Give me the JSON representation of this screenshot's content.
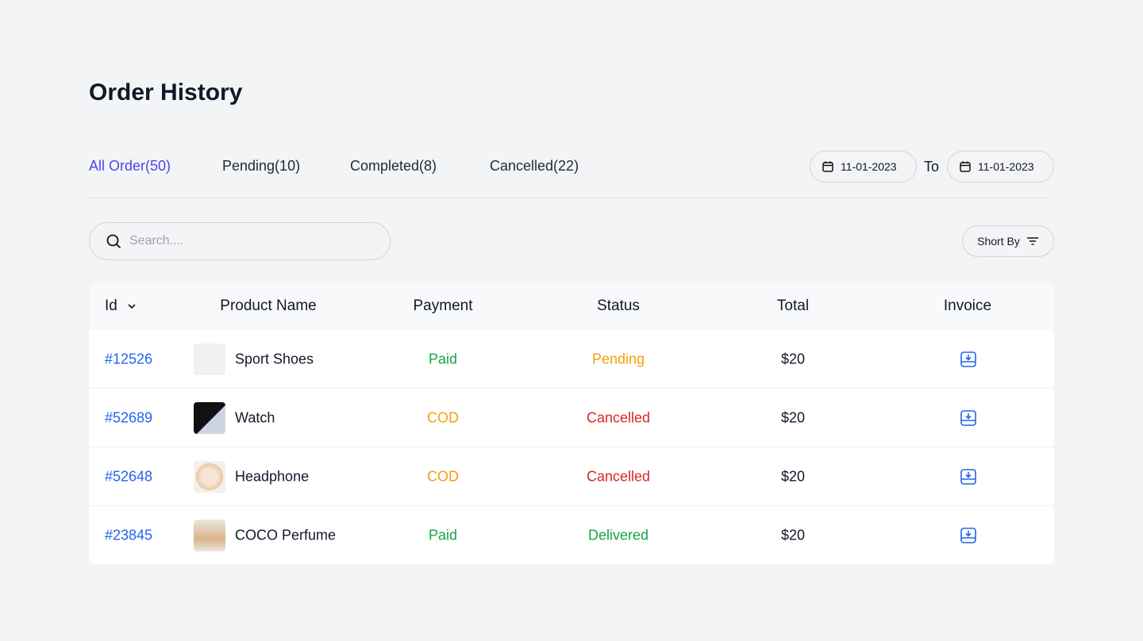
{
  "header": {
    "title": "Order History"
  },
  "tabs": [
    "All Order(50)",
    "Pending(10)",
    "Completed(8)",
    "Cancelled(22)"
  ],
  "date_range": {
    "from": "11-01-2023",
    "separator": "To",
    "to": "11-01-2023"
  },
  "search": {
    "placeholder": "Search...."
  },
  "sort": {
    "label": "Short By"
  },
  "table": {
    "columns": [
      "Id",
      "Product Name",
      "Payment",
      "Status",
      "Total",
      "Invoice"
    ],
    "rows": [
      {
        "id": "#12526",
        "product": "Sport Shoes",
        "payment": "Paid",
        "status": "Pending",
        "total": "$20"
      },
      {
        "id": "#52689",
        "product": "Watch",
        "payment": "COD",
        "status": "Cancelled",
        "total": "$20"
      },
      {
        "id": "#52648",
        "product": "Headphone",
        "payment": "COD",
        "status": "Cancelled",
        "total": "$20"
      },
      {
        "id": "#23845",
        "product": "COCO Perfume",
        "payment": "Paid",
        "status": "Delivered",
        "total": "$20"
      }
    ]
  }
}
